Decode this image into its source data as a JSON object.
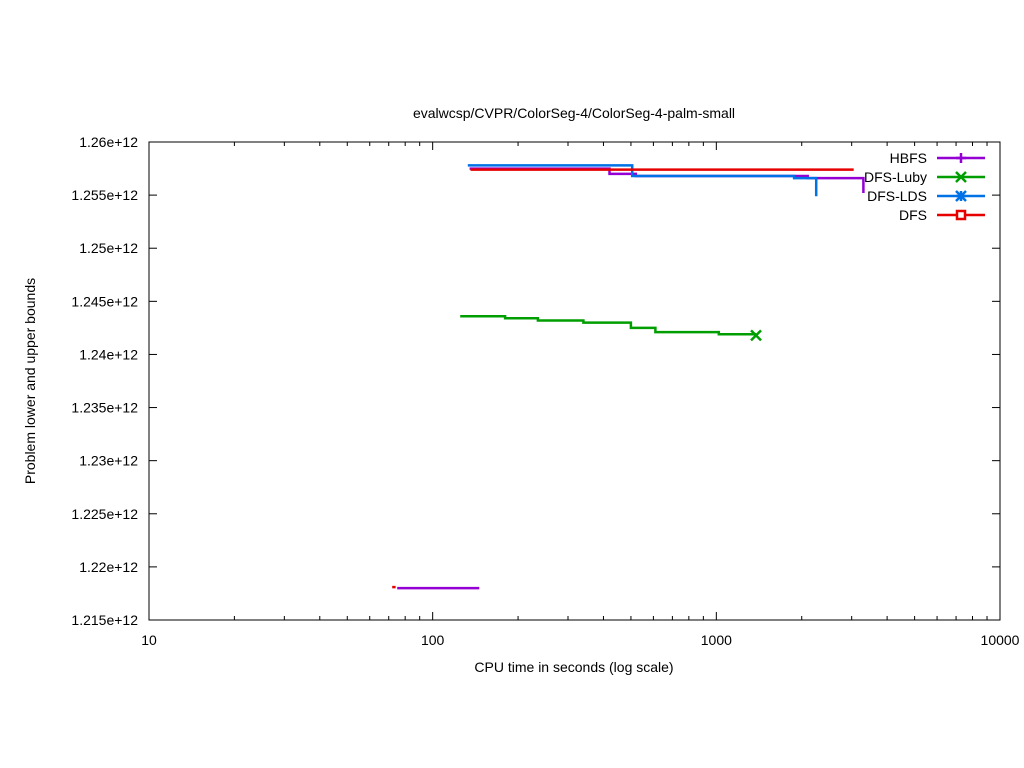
{
  "chart_data": {
    "type": "line",
    "title": "evalwcsp/CVPR/ColorSeg-4/ColorSeg-4-palm-small",
    "xlabel": "CPU time in seconds (log scale)",
    "ylabel": "Problem lower and upper bounds",
    "xscale": "log",
    "xlim": [
      10,
      10000
    ],
    "ylim": [
      1215000000000.0,
      1260000000000.0
    ],
    "xticks": [
      {
        "value": 10,
        "label": "10"
      },
      {
        "value": 100,
        "label": "100"
      },
      {
        "value": 1000,
        "label": "1000"
      },
      {
        "value": 10000,
        "label": "10000"
      }
    ],
    "yticks": [
      {
        "value": 1215000000000.0,
        "label": "1.215e+12"
      },
      {
        "value": 1220000000000.0,
        "label": "1.22e+12"
      },
      {
        "value": 1225000000000.0,
        "label": "1.225e+12"
      },
      {
        "value": 1230000000000.0,
        "label": "1.23e+12"
      },
      {
        "value": 1235000000000.0,
        "label": "1.235e+12"
      },
      {
        "value": 1240000000000.0,
        "label": "1.24e+12"
      },
      {
        "value": 1245000000000.0,
        "label": "1.245e+12"
      },
      {
        "value": 1250000000000.0,
        "label": "1.25e+12"
      },
      {
        "value": 1255000000000.0,
        "label": "1.255e+12"
      },
      {
        "value": 1260000000000.0,
        "label": "1.26e+12"
      }
    ],
    "grid": false,
    "legend_position": "top-right",
    "series": [
      {
        "name": "HBFS",
        "color": "#9400d3",
        "marker": "plus",
        "segments": [
          {
            "role": "lower",
            "points": [
              [
                75,
                1218000000000.0
              ],
              [
                146,
                1218000000000.0
              ]
            ]
          },
          {
            "role": "upper",
            "points": [
              [
                135,
                1257500000000.0
              ],
              [
                420,
                1257500000000.0
              ],
              [
                420,
                1257000000000.0
              ],
              [
                520,
                1257000000000.0
              ],
              [
                520,
                1256800000000.0
              ],
              [
                2100,
                1256800000000.0
              ],
              [
                2100,
                1256600000000.0
              ],
              [
                3300,
                1256600000000.0
              ],
              [
                3300,
                1255200000000.0
              ]
            ]
          }
        ]
      },
      {
        "name": "DFS-Luby",
        "color": "#009e00",
        "marker": "cross",
        "segments": [
          {
            "role": "upper",
            "points": [
              [
                125,
                1243600000000.0
              ],
              [
                180,
                1243600000000.0
              ],
              [
                180,
                1243400000000.0
              ],
              [
                235,
                1243400000000.0
              ],
              [
                235,
                1243200000000.0
              ],
              [
                340,
                1243200000000.0
              ],
              [
                340,
                1243000000000.0
              ],
              [
                500,
                1243000000000.0
              ],
              [
                500,
                1242500000000.0
              ],
              [
                610,
                1242500000000.0
              ],
              [
                610,
                1242100000000.0
              ],
              [
                1020,
                1242100000000.0
              ],
              [
                1020,
                1241900000000.0
              ],
              [
                1380,
                1241900000000.0
              ]
            ]
          }
        ],
        "end_marker": [
          1380,
          1241800000000.0
        ]
      },
      {
        "name": "DFS-LDS",
        "color": "#0072e6",
        "marker": "star",
        "segments": [
          {
            "role": "upper",
            "points": [
              [
                133,
                1257800000000.0
              ],
              [
                505,
                1257800000000.0
              ],
              [
                505,
                1256800000000.0
              ],
              [
                1880,
                1256800000000.0
              ],
              [
                1880,
                1256600000000.0
              ],
              [
                2250,
                1256600000000.0
              ],
              [
                2250,
                1254900000000.0
              ]
            ]
          }
        ]
      },
      {
        "name": "DFS",
        "color": "#e60000",
        "marker": "square",
        "segments": [
          {
            "role": "lower",
            "points": [
              [
                72,
                1218100000000.0
              ],
              [
                74,
                1218100000000.0
              ]
            ]
          },
          {
            "role": "upper",
            "points": [
              [
                136,
                1257400000000.0
              ],
              [
                3050,
                1257400000000.0
              ]
            ]
          }
        ]
      }
    ]
  }
}
